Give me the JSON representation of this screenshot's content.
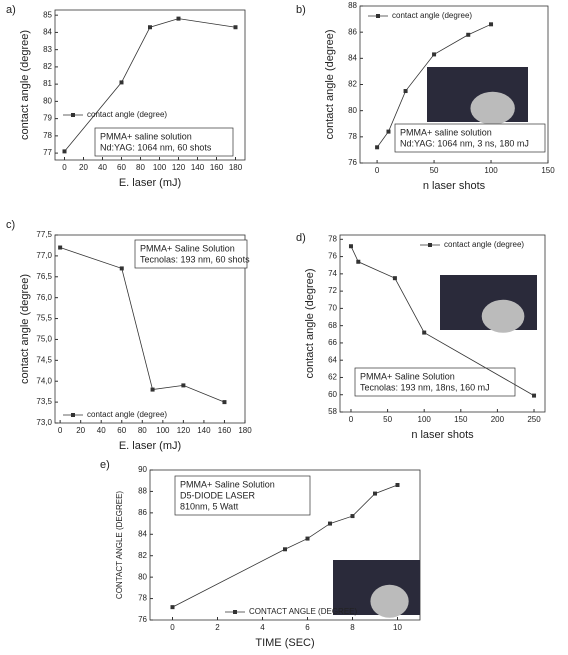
{
  "chart_data": [
    {
      "type": "line",
      "label": "a)",
      "xlabel": "E. laser (mJ)",
      "ylabel": "contact angle (degree)",
      "x": [
        0,
        60,
        90,
        120,
        180
      ],
      "series": [
        {
          "name": "contact angle (degree)",
          "color": "#333333",
          "values": [
            77.1,
            81.1,
            84.3,
            84.8,
            84.3
          ]
        }
      ],
      "xlim": [
        -10,
        190
      ],
      "xticks": [
        0,
        20,
        40,
        60,
        80,
        100,
        120,
        140,
        160,
        180
      ],
      "ylim": [
        76.6,
        85.3
      ],
      "yticks": [
        77,
        78,
        79,
        80,
        81,
        82,
        83,
        84,
        85
      ],
      "legend_position": "center left",
      "annotation": [
        "PMMA+ saline solution",
        "Nd:YAG: 1064 nm, 60 shots"
      ]
    },
    {
      "type": "line",
      "label": "b)",
      "xlabel": "n laser shots",
      "ylabel": "contact angle (degree)",
      "x": [
        0,
        10,
        25,
        50,
        80,
        100
      ],
      "series": [
        {
          "name": "contact angle (degree)",
          "color": "#333333",
          "values": [
            77.2,
            78.4,
            81.5,
            84.3,
            85.8,
            86.6
          ]
        }
      ],
      "xlim": [
        -15,
        150
      ],
      "xticks": [
        0,
        50,
        100,
        150
      ],
      "ylim": [
        76,
        88
      ],
      "yticks": [
        76,
        78,
        80,
        82,
        84,
        86,
        88
      ],
      "legend_position": "upper left",
      "annotation": [
        "PMMA+ saline solution",
        "Nd:YAG: 1064 nm, 3 ns, 180 mJ"
      ]
    },
    {
      "type": "line",
      "label": "c)",
      "xlabel": "E. laser (mJ)",
      "ylabel": "contact angle (degree)",
      "x": [
        0,
        60,
        90,
        120,
        160
      ],
      "series": [
        {
          "name": "contact angle (degree)",
          "color": "#333333",
          "values": [
            77.2,
            76.7,
            73.8,
            73.9,
            73.5
          ]
        }
      ],
      "xlim": [
        -5,
        180
      ],
      "xticks": [
        0,
        20,
        40,
        60,
        80,
        100,
        120,
        140,
        160,
        180
      ],
      "ylim": [
        73,
        77.5
      ],
      "yticks": [
        {
          "value": 73,
          "label": "73,0"
        },
        {
          "value": 73.5,
          "label": "73,5"
        },
        {
          "value": 74,
          "label": "74,0"
        },
        {
          "value": 74.5,
          "label": "74,5"
        },
        {
          "value": 75,
          "label": "75,0"
        },
        {
          "value": 75.5,
          "label": "75,5"
        },
        {
          "value": 76,
          "label": "76,0"
        },
        {
          "value": 76.5,
          "label": "76,5"
        },
        {
          "value": 77,
          "label": "77,0"
        },
        {
          "value": 77.5,
          "label": "77,5"
        }
      ],
      "legend_position": "lower left",
      "annotation": [
        "PMMA+ Saline Solution",
        "Tecnolas: 193 nm, 60 shots"
      ]
    },
    {
      "type": "line",
      "label": "d)",
      "xlabel": "n laser shots",
      "ylabel": "contact angle (degree)",
      "x": [
        0,
        10,
        60,
        100,
        250
      ],
      "series": [
        {
          "name": "contact angle (degree)",
          "color": "#333333",
          "values": [
            77.2,
            75.4,
            73.5,
            67.2,
            59.9
          ]
        }
      ],
      "xlim": [
        -15,
        265
      ],
      "xticks": [
        0,
        50,
        100,
        150,
        200,
        250
      ],
      "ylim": [
        58,
        78.5
      ],
      "yticks": [
        58,
        60,
        62,
        64,
        66,
        68,
        70,
        72,
        74,
        76,
        78
      ],
      "legend_position": "upper right",
      "annotation": [
        "PMMA+ Saline Solution",
        "Tecnolas: 193 nm, 18ns, 160 mJ"
      ]
    },
    {
      "type": "line",
      "label": "e)",
      "xlabel": "TIME (SEC)",
      "ylabel": "CONTACT ANGLE (DEGREE)",
      "x": [
        0,
        5,
        6,
        7,
        8,
        9,
        10
      ],
      "series": [
        {
          "name": "CONTACT ANGLE (DEGREE)",
          "color": "#333333",
          "values": [
            77.2,
            82.6,
            83.6,
            85.0,
            85.7,
            87.8,
            88.6
          ]
        }
      ],
      "xlim": [
        -1,
        11
      ],
      "xticks": [
        0,
        2,
        4,
        6,
        8,
        10
      ],
      "ylim": [
        76,
        90
      ],
      "yticks": [
        76,
        78,
        80,
        82,
        84,
        86,
        88,
        90
      ],
      "legend_position": "lower center",
      "annotation": [
        "PMMA+ Saline Solution",
        "D5-DIODE LASER",
        "810nm, 5 Watt"
      ]
    }
  ]
}
